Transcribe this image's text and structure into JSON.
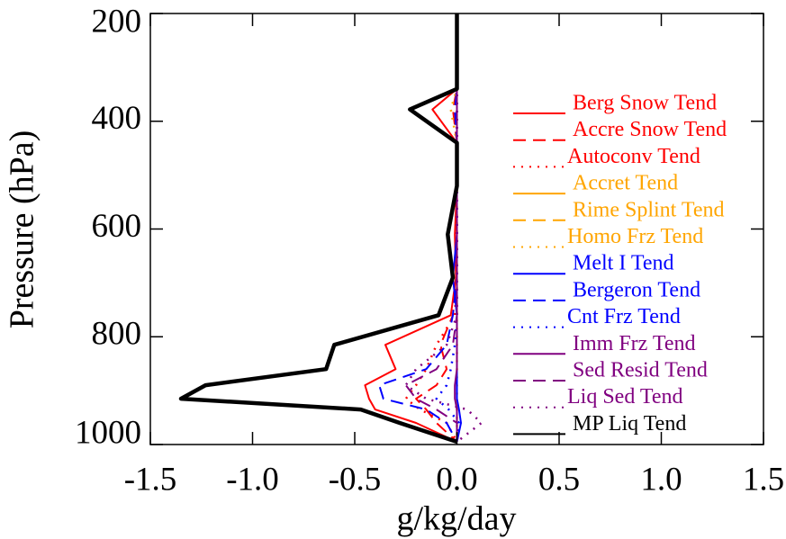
{
  "chart_data": {
    "type": "line",
    "x_label": "g/kg/day",
    "y_label": "Pressure (hPa)",
    "xlim": [
      -1.5,
      1.5
    ],
    "xticks": [
      {
        "value": -1.5,
        "label": "-1.5"
      },
      {
        "value": -1.0,
        "label": "-1.0"
      },
      {
        "value": -0.5,
        "label": "-0.5"
      },
      {
        "value": 0.0,
        "label": "0.0"
      },
      {
        "value": 0.5,
        "label": "0.5"
      },
      {
        "value": 1.0,
        "label": "1.0"
      },
      {
        "value": 1.5,
        "label": "1.5"
      }
    ],
    "ylim": [
      200,
      1000
    ],
    "y_inverted": true,
    "yticks": [
      200,
      400,
      600,
      800,
      1000
    ],
    "y": [
      200,
      340,
      378,
      440,
      520,
      610,
      690,
      760,
      815,
      860,
      890,
      915,
      935,
      960,
      995
    ],
    "series": [
      {
        "name": "Berg Snow Tend",
        "color": "#ff0000",
        "dash": "solid",
        "width": 2,
        "values": [
          0,
          0,
          -0.12,
          0,
          0,
          -0.01,
          -0.005,
          -0.03,
          -0.35,
          -0.3,
          -0.45,
          -0.43,
          -0.4,
          -0.2,
          0
        ]
      },
      {
        "name": "Accre Snow Tend",
        "color": "#ff0000",
        "dash": "dashed",
        "width": 2,
        "values": [
          0,
          0,
          -0.02,
          0,
          0,
          0,
          0,
          -0.02,
          -0.08,
          -0.05,
          -0.1,
          -0.2,
          -0.15,
          -0.1,
          0
        ]
      },
      {
        "name": "Autoconv Tend",
        "color": "#ff0000",
        "dash": "dotted",
        "width": 2.5,
        "values": [
          0,
          0,
          0,
          0,
          0,
          0,
          0,
          -0.01,
          -0.1,
          -0.15,
          -0.2,
          -0.25,
          -0.18,
          -0.05,
          0
        ]
      },
      {
        "name": "Accret Tend",
        "color": "#ffa500",
        "dash": "solid",
        "width": 2,
        "values": [
          0,
          0,
          0,
          0,
          0,
          0,
          0,
          0,
          0,
          0,
          0,
          0,
          0,
          0,
          0
        ]
      },
      {
        "name": "Rime Splint Tend",
        "color": "#ffa500",
        "dash": "dashed",
        "width": 2,
        "values": [
          0,
          0,
          -0.01,
          0,
          0,
          0,
          0,
          0,
          0,
          0,
          0,
          0,
          0,
          0,
          0
        ]
      },
      {
        "name": "Homo Frz Tend",
        "color": "#ffa500",
        "dash": "dotted",
        "width": 2.5,
        "values": [
          0,
          0,
          -0.03,
          0,
          0,
          0,
          0,
          0,
          0,
          0,
          0,
          0,
          0,
          0,
          0
        ]
      },
      {
        "name": "Melt I Tend",
        "color": "#0000ff",
        "dash": "solid",
        "width": 2,
        "values": [
          0,
          0,
          0,
          0,
          0,
          0,
          -0.02,
          0,
          0,
          0,
          0,
          0,
          0.01,
          0.02,
          0
        ]
      },
      {
        "name": "Bergeron Tend",
        "color": "#0000ff",
        "dash": "dashed",
        "width": 2,
        "values": [
          0,
          0,
          -0.01,
          0,
          0,
          0,
          0,
          -0.02,
          -0.05,
          -0.15,
          -0.38,
          -0.36,
          -0.15,
          -0.05,
          0
        ]
      },
      {
        "name": "Cnt Frz Tend",
        "color": "#0000ff",
        "dash": "dotted",
        "width": 2.5,
        "values": [
          0,
          0,
          0,
          0,
          0,
          0,
          0,
          0,
          -0.01,
          -0.03,
          -0.05,
          -0.1,
          -0.04,
          0.01,
          0
        ]
      },
      {
        "name": "Imm Frz Tend",
        "color": "#800080",
        "dash": "solid",
        "width": 2,
        "values": [
          0,
          0,
          0,
          0,
          0,
          0,
          0,
          0,
          0,
          0,
          -0.01,
          -0.01,
          0,
          0,
          0
        ]
      },
      {
        "name": "Sed Resid Tend",
        "color": "#800080",
        "dash": "dashed",
        "width": 2,
        "values": [
          0,
          0,
          0,
          0,
          0,
          0,
          0,
          0,
          -0.02,
          -0.1,
          -0.25,
          -0.2,
          -0.1,
          0,
          0
        ]
      },
      {
        "name": "Liq Sed Tend",
        "color": "#800080",
        "dash": "dotted",
        "width": 2.5,
        "values": [
          0,
          0,
          0,
          0,
          0,
          0,
          0,
          0,
          -0.05,
          -0.2,
          -0.25,
          -0.15,
          0.05,
          0.12,
          0
        ]
      },
      {
        "name": "MP Liq Tend",
        "color": "#000000",
        "dash": "solid",
        "width": 4.5,
        "values": [
          0,
          0,
          -0.23,
          0,
          0,
          -0.045,
          -0.02,
          -0.09,
          -0.6,
          -0.64,
          -1.23,
          -1.35,
          -0.47,
          -0.28,
          0
        ]
      }
    ]
  }
}
